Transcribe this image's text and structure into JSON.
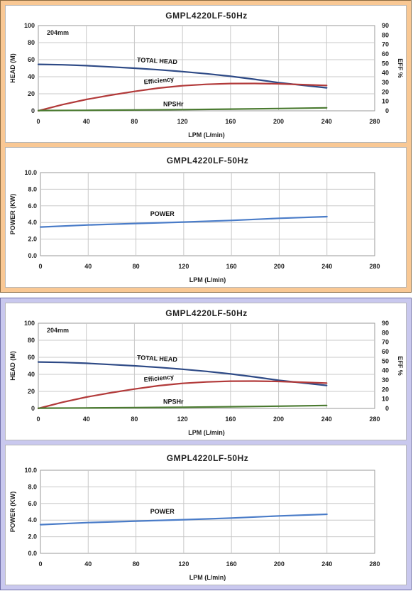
{
  "panels": [
    {
      "theme": "peach",
      "background": "#f9c894",
      "charts": [
        {
          "kind": "performance",
          "chart_data": {
            "type": "line",
            "title": "GMPL4220LF-50Hz",
            "annotation": "204mm",
            "xlabel": "LPM (L/min)",
            "ylabel": "HEAD (M)",
            "y2label": "EFF %",
            "xlim": [
              0,
              280
            ],
            "xticks": [
              0,
              40,
              80,
              120,
              160,
              200,
              240,
              280
            ],
            "ylim": [
              0,
              100
            ],
            "yticks": [
              0,
              20,
              40,
              60,
              80,
              100
            ],
            "y2lim": [
              0,
              90
            ],
            "y2ticks": [
              0,
              10,
              20,
              30,
              40,
              50,
              60,
              70,
              80,
              90
            ],
            "grid": true,
            "series": [
              {
                "name": "TOTAL HEAD",
                "axis": "y",
                "color": "#2e4a86",
                "x": [
                  0,
                  20,
                  40,
                  60,
                  80,
                  100,
                  120,
                  140,
                  160,
                  180,
                  200,
                  220,
                  240
                ],
                "y": [
                  54.5,
                  54,
                  53,
                  51.5,
                  50,
                  48.2,
                  46,
                  43.5,
                  40.5,
                  37,
                  33,
                  30,
                  27
                ]
              },
              {
                "name": "Efficiency",
                "axis": "y2",
                "color": "#b23a3a",
                "x": [
                  0,
                  20,
                  40,
                  60,
                  80,
                  100,
                  120,
                  140,
                  160,
                  180,
                  200,
                  220,
                  240
                ],
                "y": [
                  0,
                  6.5,
                  12,
                  16.5,
                  20.5,
                  24,
                  26.5,
                  28,
                  28.8,
                  28.9,
                  28.5,
                  27.7,
                  26.8
                ]
              },
              {
                "name": "NPSHr",
                "axis": "y",
                "color": "#4a7a30",
                "x": [
                  0,
                  40,
                  80,
                  120,
                  160,
                  200,
                  240
                ],
                "y": [
                  0.3,
                  0.6,
                  1,
                  1.4,
                  2,
                  2.7,
                  3.5
                ]
              }
            ]
          }
        },
        {
          "kind": "power",
          "chart_data": {
            "type": "line",
            "title": "GMPL4220LF-50Hz",
            "xlabel": "LPM  (L/min)",
            "ylabel": "POWER (KW)",
            "xlim": [
              0,
              280
            ],
            "xticks": [
              0,
              40,
              80,
              120,
              160,
              200,
              240,
              280
            ],
            "ylim": [
              0,
              10
            ],
            "yticks": [
              "0.0",
              "2.0",
              "4.0",
              "6.0",
              "8.0",
              "10.0"
            ],
            "grid": true,
            "series": [
              {
                "name": "POWER",
                "color": "#4a7cc8",
                "x": [
                  0,
                  40,
                  80,
                  120,
                  160,
                  200,
                  240
                ],
                "y": [
                  3.45,
                  3.7,
                  3.88,
                  4.05,
                  4.25,
                  4.5,
                  4.7
                ]
              }
            ]
          }
        }
      ]
    },
    {
      "theme": "lavender",
      "background": "#c9c8ee",
      "charts": [
        {
          "kind": "performance",
          "chart_data": {
            "type": "line",
            "title": "GMPL4220LF-50Hz",
            "annotation": "204mm",
            "xlabel": "LPM (L/min)",
            "ylabel": "HEAD (M)",
            "y2label": "EFF %",
            "xlim": [
              0,
              280
            ],
            "xticks": [
              0,
              40,
              80,
              120,
              160,
              200,
              240,
              280
            ],
            "ylim": [
              0,
              100
            ],
            "yticks": [
              0,
              20,
              40,
              60,
              80,
              100
            ],
            "y2lim": [
              0,
              90
            ],
            "y2ticks": [
              0,
              10,
              20,
              30,
              40,
              50,
              60,
              70,
              80,
              90
            ],
            "grid": true,
            "series": [
              {
                "name": "TOTAL HEAD",
                "axis": "y",
                "color": "#2e4a86",
                "x": [
                  0,
                  20,
                  40,
                  60,
                  80,
                  100,
                  120,
                  140,
                  160,
                  180,
                  200,
                  220,
                  240
                ],
                "y": [
                  54.5,
                  54,
                  53,
                  51.5,
                  50,
                  48.2,
                  46,
                  43.5,
                  40.5,
                  37,
                  33,
                  30,
                  27
                ]
              },
              {
                "name": "Efficiency",
                "axis": "y2",
                "color": "#b23a3a",
                "x": [
                  0,
                  20,
                  40,
                  60,
                  80,
                  100,
                  120,
                  140,
                  160,
                  180,
                  200,
                  220,
                  240
                ],
                "y": [
                  0,
                  6.5,
                  12,
                  16.5,
                  20.5,
                  24,
                  26.5,
                  28,
                  28.8,
                  28.9,
                  28.5,
                  27.7,
                  26.8
                ]
              },
              {
                "name": "NPSHr",
                "axis": "y",
                "color": "#4a7a30",
                "x": [
                  0,
                  40,
                  80,
                  120,
                  160,
                  200,
                  240
                ],
                "y": [
                  0.3,
                  0.6,
                  1,
                  1.4,
                  2,
                  2.7,
                  3.5
                ]
              }
            ]
          }
        },
        {
          "kind": "power",
          "chart_data": {
            "type": "line",
            "title": "GMPL4220LF-50Hz",
            "xlabel": "LPM  (L/min)",
            "ylabel": "POWER (KW)",
            "xlim": [
              0,
              280
            ],
            "xticks": [
              0,
              40,
              80,
              120,
              160,
              200,
              240,
              280
            ],
            "ylim": [
              0,
              10
            ],
            "yticks": [
              "0.0",
              "2.0",
              "4.0",
              "6.0",
              "8.0",
              "10.0"
            ],
            "grid": true,
            "series": [
              {
                "name": "POWER",
                "color": "#4a7cc8",
                "x": [
                  0,
                  40,
                  80,
                  120,
                  160,
                  200,
                  240
                ],
                "y": [
                  3.45,
                  3.7,
                  3.88,
                  4.05,
                  4.25,
                  4.5,
                  4.7
                ]
              }
            ]
          }
        }
      ]
    }
  ]
}
